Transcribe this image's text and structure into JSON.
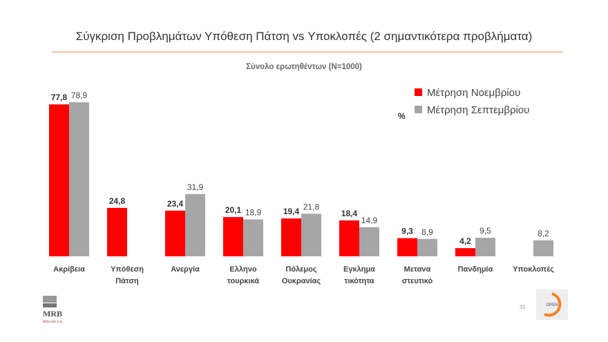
{
  "chart_data": {
    "type": "bar",
    "title": "Σύγκριση Προβλημάτων Υπόθεση Πάτση vs Υποκλοπές (2 σημαντικότερα προβλήματα)",
    "subtitle": "Σύνολο ερωτηθέντων (N=1000)",
    "ylabel": "%",
    "ylim": [
      0,
      80
    ],
    "grid": false,
    "legend_position": "top-right",
    "categories": [
      [
        "Ακρίβεια"
      ],
      [
        "Υπόθεση",
        "Πάτση"
      ],
      [
        "Ανεργία"
      ],
      [
        "Ελληνο",
        "τουρκικά"
      ],
      [
        "Πόλεμος",
        "Ουκρανίας"
      ],
      [
        "Εγκλημα",
        "τικότητα"
      ],
      [
        "Μετανα",
        "στευτικό"
      ],
      [
        "Πανδημία"
      ],
      [
        "Υποκλοπές"
      ]
    ],
    "series": [
      {
        "name": "Μέτρηση Νοεμβρίου",
        "color": "#ff0000",
        "values": [
          77.8,
          24.8,
          23.4,
          20.1,
          19.4,
          18.4,
          9.3,
          4.2,
          null
        ]
      },
      {
        "name": "Μέτρηση Σεπτεμβρίου",
        "color": "#a6a6a6",
        "values": [
          78.9,
          null,
          31.9,
          18.9,
          21.8,
          14.9,
          8.9,
          9.5,
          8.2
        ]
      }
    ]
  },
  "footer": {
    "page_number": "31",
    "left_logo": "MRB HELLAS S.A.",
    "right_logo": "OPEN"
  },
  "colors": {
    "accent_line": "#f4b183"
  }
}
